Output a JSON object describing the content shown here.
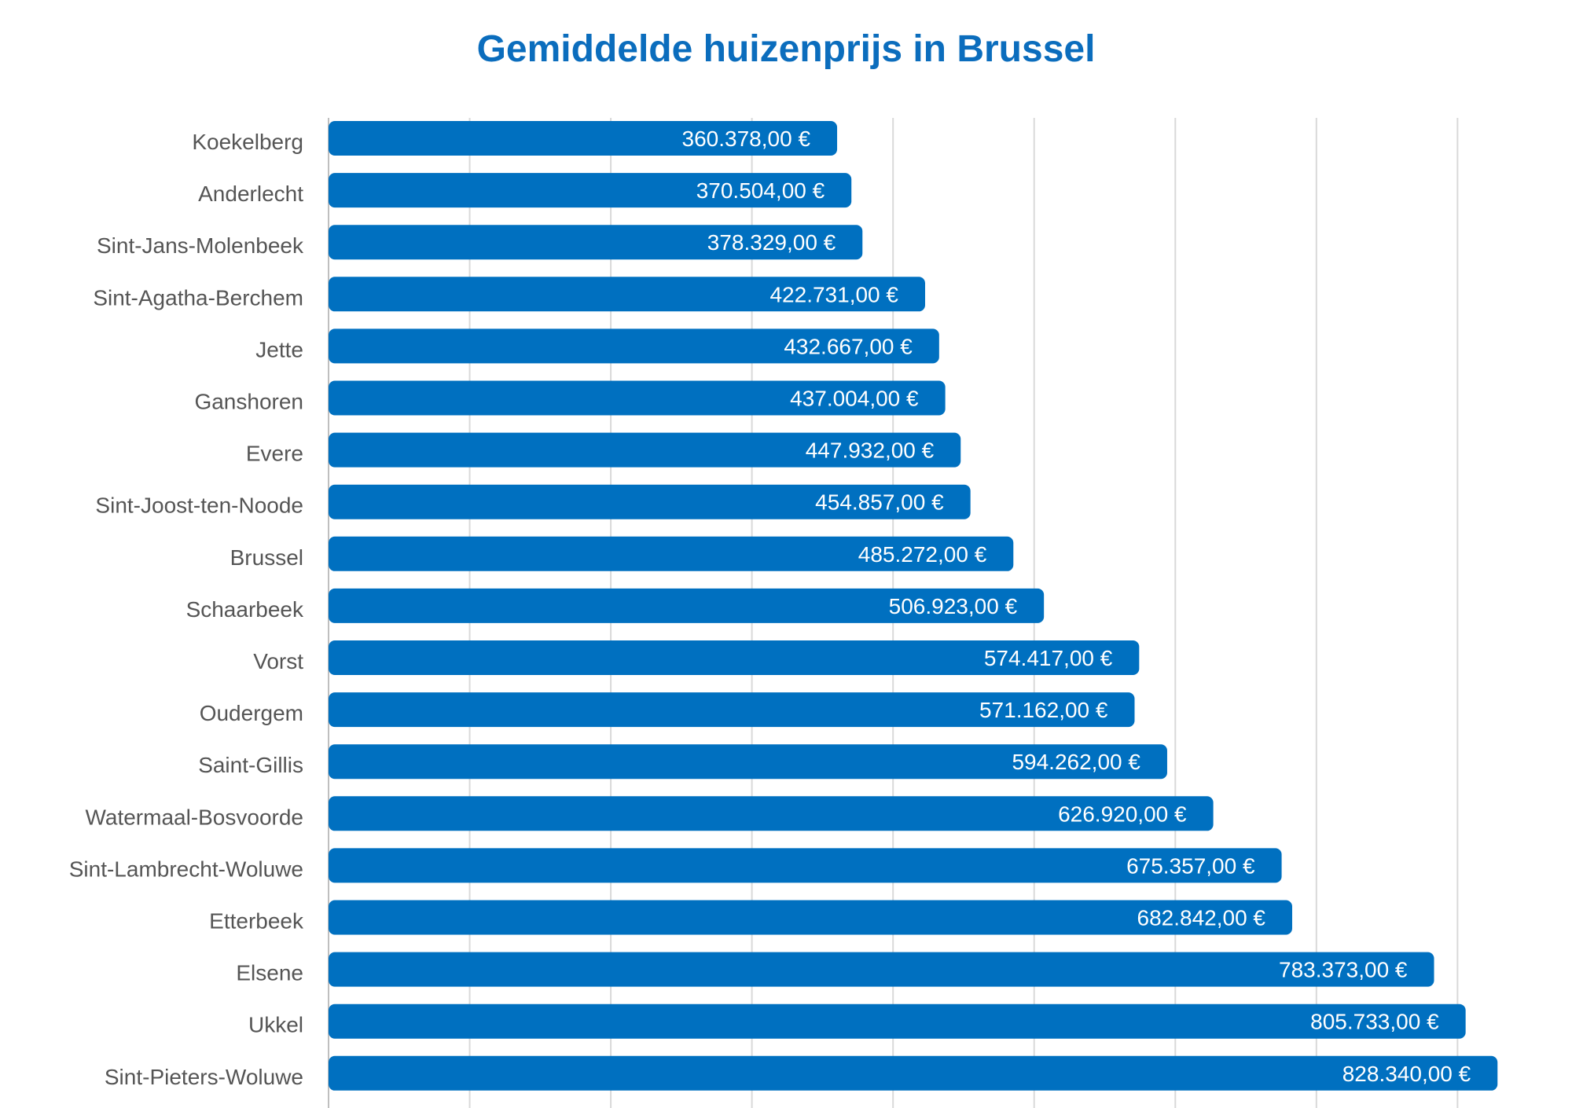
{
  "chart_data": {
    "type": "bar",
    "orientation": "horizontal",
    "title": "Gemiddelde huizenprijs in Brussel",
    "xlabel": "",
    "ylabel": "",
    "xlim": [
      0,
      880000
    ],
    "grid": true,
    "bar_color": "#0070c0",
    "title_color": "#0b6dbd",
    "categories": [
      "Koekelberg",
      "Anderlecht",
      "Sint-Jans-Molenbeek",
      "Sint-Agatha-Berchem",
      "Jette",
      "Ganshoren",
      "Evere",
      "Sint-Joost-ten-Noode",
      "Brussel",
      "Schaarbeek",
      "Vorst",
      "Oudergem",
      "Saint-Gillis",
      "Watermaal-Bosvoorde",
      "Sint-Lambrecht-Woluwe",
      "Etterbeek",
      "Elsene",
      "Ukkel",
      "Sint-Pieters-Woluwe"
    ],
    "values": [
      360378,
      370504,
      378329,
      422731,
      432667,
      437004,
      447932,
      454857,
      485272,
      506923,
      574417,
      571162,
      594262,
      626920,
      675357,
      682842,
      783373,
      805733,
      828340
    ],
    "value_labels": [
      "360.378,00 €",
      "370.504,00 €",
      "378.329,00 €",
      "422.731,00 €",
      "432.667,00 €",
      "437.004,00 €",
      "447.932,00 €",
      "454.857,00 €",
      "485.272,00 €",
      "506.923,00 €",
      "574.417,00 €",
      "571.162,00 €",
      "594.262,00 €",
      "626.920,00 €",
      "675.357,00 €",
      "682.842,00 €",
      "783.373,00 €",
      "805.733,00 €",
      "828.340,00 €"
    ]
  }
}
